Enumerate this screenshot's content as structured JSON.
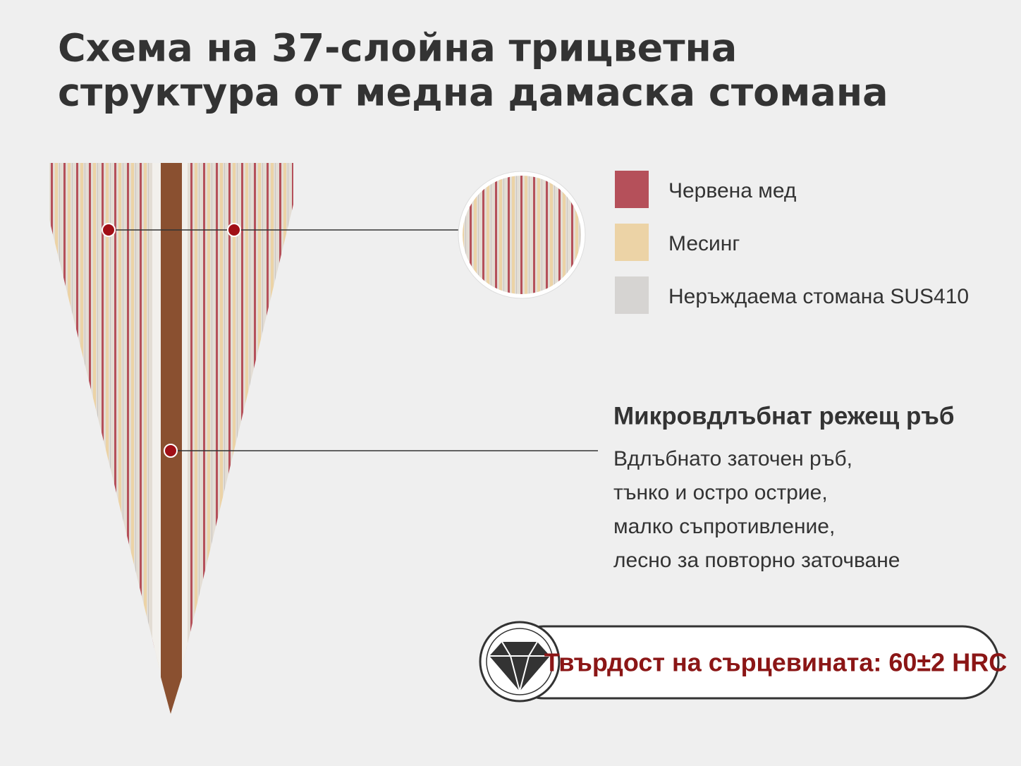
{
  "title": [
    "Схема на 37-слойна трицветна",
    "структура от медна дамаска стомана"
  ],
  "legend": [
    {
      "label": "Червена мед",
      "color": "#b5505a"
    },
    {
      "label": "Месинг",
      "color": "#ecd3a6"
    },
    {
      "label": "Неръждаема стомана SUS410",
      "color": "#d6d4d2"
    }
  ],
  "callout": {
    "heading": "Микровдлъбнат режещ ръб",
    "lines": [
      "Вдлъбнато заточен ръб,",
      "тънко и остро острие,",
      "малко съпротивление,",
      "лесно за повторно заточване"
    ]
  },
  "badge": "Твърдост на сърцевината: 60±2 HRC"
}
